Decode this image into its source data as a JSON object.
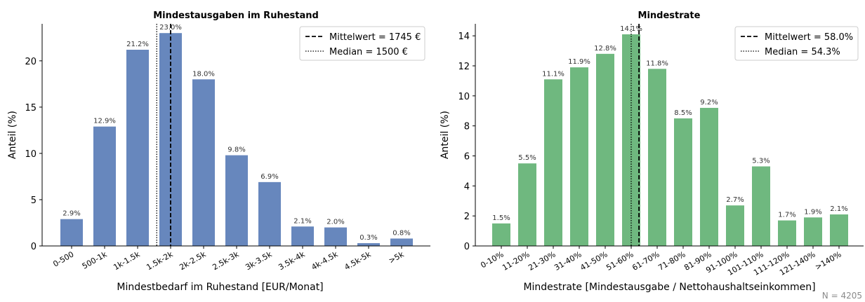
{
  "footnote": "N = 4205",
  "chart_data": [
    {
      "type": "bar",
      "title": "Mindestausgaben im Ruhestand",
      "xlabel": "Mindestbedarf im Ruhestand [EUR/Monat]",
      "ylabel": "Anteil (%)",
      "ylim": [
        0,
        24
      ],
      "yticks": [
        "0",
        "5",
        "10",
        "15",
        "20"
      ],
      "categories": [
        "0-500",
        "500-1k",
        "1k-1.5k",
        "1.5k-2k",
        "2k-2.5k",
        "2.5k-3k",
        "3k-3.5k",
        "3.5k-4k",
        "4k-4.5k",
        "4.5k-5k",
        ">5k"
      ],
      "values": [
        2.9,
        12.9,
        21.2,
        23.0,
        18.0,
        9.8,
        6.9,
        2.1,
        2.0,
        0.3,
        0.8
      ],
      "value_labels": [
        "2.9%",
        "12.9%",
        "21.2%",
        "23.0%",
        "18.0%",
        "9.8%",
        "6.9%",
        "2.1%",
        "2.0%",
        "0.3%",
        "0.8%"
      ],
      "bar_color": "#6787bd",
      "mean_position": 3.0,
      "median_position": 2.58,
      "legend_position": "top-right",
      "legend": [
        {
          "label": "Mittelwert = 1745 €",
          "style": "dashed"
        },
        {
          "label": "Median = 1500 €",
          "style": "dotted"
        }
      ]
    },
    {
      "type": "bar",
      "title": "Mindestrate",
      "xlabel": "Mindestrate [Mindestausgabe / Nettohaushaltseinkommen]",
      "ylabel": "Anteil (%)",
      "ylim": [
        0,
        14.8
      ],
      "yticks": [
        "0",
        "2",
        "4",
        "6",
        "8",
        "10",
        "12",
        "14"
      ],
      "categories": [
        "0-10%",
        "11-20%",
        "21-30%",
        "31-40%",
        "41-50%",
        "51-60%",
        "61-70%",
        "71-80%",
        "81-90%",
        "91-100%",
        "101-110%",
        "111-120%",
        "121-140%",
        ">140%"
      ],
      "values": [
        1.5,
        5.5,
        11.1,
        11.9,
        12.8,
        14.1,
        11.8,
        8.5,
        9.2,
        2.7,
        5.3,
        1.7,
        1.9,
        2.1
      ],
      "value_labels": [
        "1.5%",
        "5.5%",
        "11.1%",
        "11.9%",
        "12.8%",
        "14.1%",
        "11.8%",
        "8.5%",
        "9.2%",
        "2.7%",
        "5.3%",
        "1.7%",
        "1.9%",
        "2.1%"
      ],
      "bar_color": "#6fb87f",
      "mean_position": 5.3,
      "median_position": 5.0,
      "legend_position": "top-right",
      "legend": [
        {
          "label": "Mittelwert = 58.0%",
          "style": "dashed"
        },
        {
          "label": "Median = 54.3%",
          "style": "dotted"
        }
      ]
    }
  ]
}
